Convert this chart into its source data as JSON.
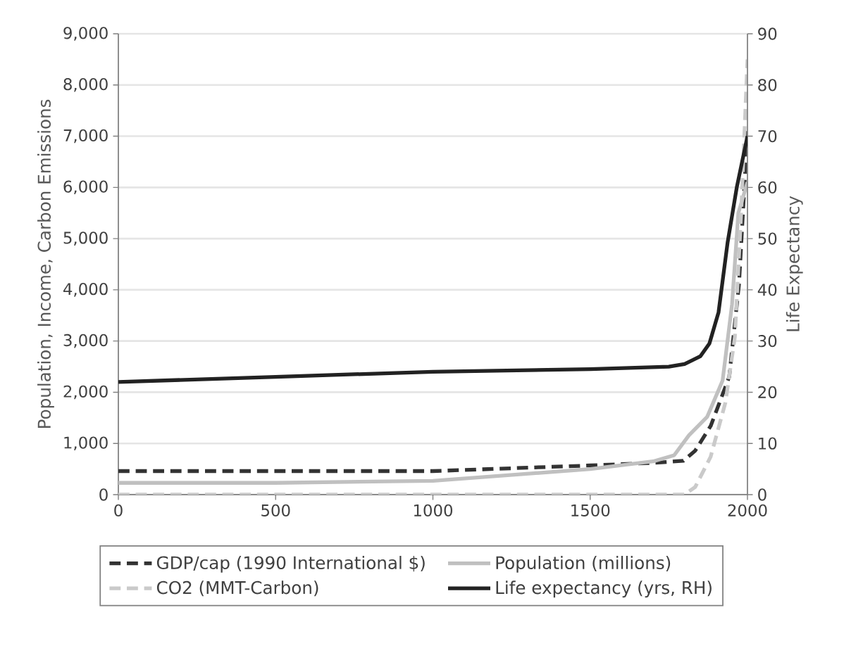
{
  "chart_data": {
    "type": "line",
    "ylabel": "Population, Income, Carbon Emissions",
    "y2label": "Life Expectancy",
    "xlim": [
      0,
      2000
    ],
    "xticks": [
      0,
      500,
      1000,
      1500,
      2000
    ],
    "ylim": [
      0,
      9000
    ],
    "yticks": [
      0,
      {
        "value": 1000,
        "label": "1,000"
      },
      {
        "value": 2000,
        "label": "2,000"
      },
      {
        "value": 3000,
        "label": "3,000"
      },
      {
        "value": 4000,
        "label": "4,000"
      },
      {
        "value": 5000,
        "label": "5,000"
      },
      {
        "value": 6000,
        "label": "6,000"
      },
      {
        "value": 7000,
        "label": "7,000"
      },
      {
        "value": 8000,
        "label": "8,000"
      },
      {
        "value": 9000,
        "label": "9,000"
      }
    ],
    "y2lim": [
      0,
      90
    ],
    "y2ticks": [
      0,
      10,
      20,
      30,
      40,
      50,
      60,
      70,
      80,
      90
    ],
    "grid": "y",
    "legend": "bottom",
    "series": [
      {
        "name": "GDP/cap (1990 International $)",
        "color": "#333333",
        "line_style": "dashed",
        "x": [
          0,
          500,
          1000,
          1500,
          1700,
          1796,
          1834,
          1883,
          1942,
          1973,
          2000
        ],
        "values": [
          460,
          460,
          460,
          570,
          620,
          660,
          860,
          1340,
          2300,
          4100,
          7100
        ]
      },
      {
        "name": "Population (millions)",
        "color": "#c0c0c0",
        "line_style": "solid",
        "x": [
          0,
          500,
          1000,
          1500,
          1700,
          1767,
          1814,
          1872,
          1921,
          1951,
          1971,
          2000
        ],
        "values": [
          230,
          230,
          270,
          500,
          650,
          770,
          1160,
          1520,
          2230,
          3720,
          5500,
          6100
        ]
      },
      {
        "name": "CO2 (MMT-Carbon)",
        "color": "#cacaca",
        "line_style": "dashed",
        "x": [
          0,
          500,
          1000,
          1500,
          1800,
          1834,
          1883,
          1930,
          1960,
          1980,
          2000
        ],
        "values": [
          0,
          0,
          0,
          0,
          0,
          150,
          740,
          1800,
          3080,
          5500,
          8500
        ]
      },
      {
        "name": "Life expectancy (yrs, RH)",
        "color": "#222222",
        "line_style": "solid",
        "axis": "y2",
        "x": [
          0,
          500,
          1000,
          1500,
          1750,
          1800,
          1850,
          1879,
          1908,
          1937,
          1966,
          2000
        ],
        "values": [
          22,
          23,
          24,
          24.5,
          25,
          25.5,
          27,
          29.5,
          35.6,
          49.3,
          60,
          70
        ]
      }
    ]
  }
}
